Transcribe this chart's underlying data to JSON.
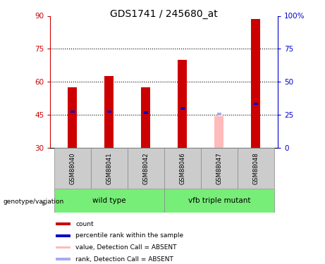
{
  "title": "GDS1741 / 245680_at",
  "samples": [
    "GSM88040",
    "GSM88041",
    "GSM88042",
    "GSM88046",
    "GSM88047",
    "GSM88048"
  ],
  "bar_values": [
    57.5,
    62.5,
    57.5,
    70.0,
    44.5,
    88.5
  ],
  "bar_colors": [
    "#cc0000",
    "#cc0000",
    "#cc0000",
    "#cc0000",
    "#ffbbbb",
    "#cc0000"
  ],
  "rank_values": [
    46.5,
    46.5,
    46.0,
    48.0,
    45.3,
    50.0
  ],
  "rank_colors": [
    "#0000cc",
    "#0000cc",
    "#0000cc",
    "#0000cc",
    "#aaaaee",
    "#0000cc"
  ],
  "ylim_left": [
    30,
    90
  ],
  "ylim_right": [
    0,
    100
  ],
  "yticks_left": [
    30,
    45,
    60,
    75,
    90
  ],
  "yticks_right": [
    0,
    25,
    50,
    75,
    100
  ],
  "ytick_labels_right": [
    "0",
    "25",
    "50",
    "75",
    "100%"
  ],
  "hlines": [
    45,
    60,
    75
  ],
  "sample_box_color": "#cccccc",
  "group_color": "#77ee77",
  "legend_items": [
    {
      "label": "count",
      "color": "#cc0000"
    },
    {
      "label": "percentile rank within the sample",
      "color": "#0000cc"
    },
    {
      "label": "value, Detection Call = ABSENT",
      "color": "#ffbbbb"
    },
    {
      "label": "rank, Detection Call = ABSENT",
      "color": "#aaaaee"
    }
  ],
  "genotype_label": "genotype/variation",
  "title_fontsize": 10,
  "tick_fontsize": 7.5,
  "label_fontsize": 7,
  "bar_width": 0.25
}
